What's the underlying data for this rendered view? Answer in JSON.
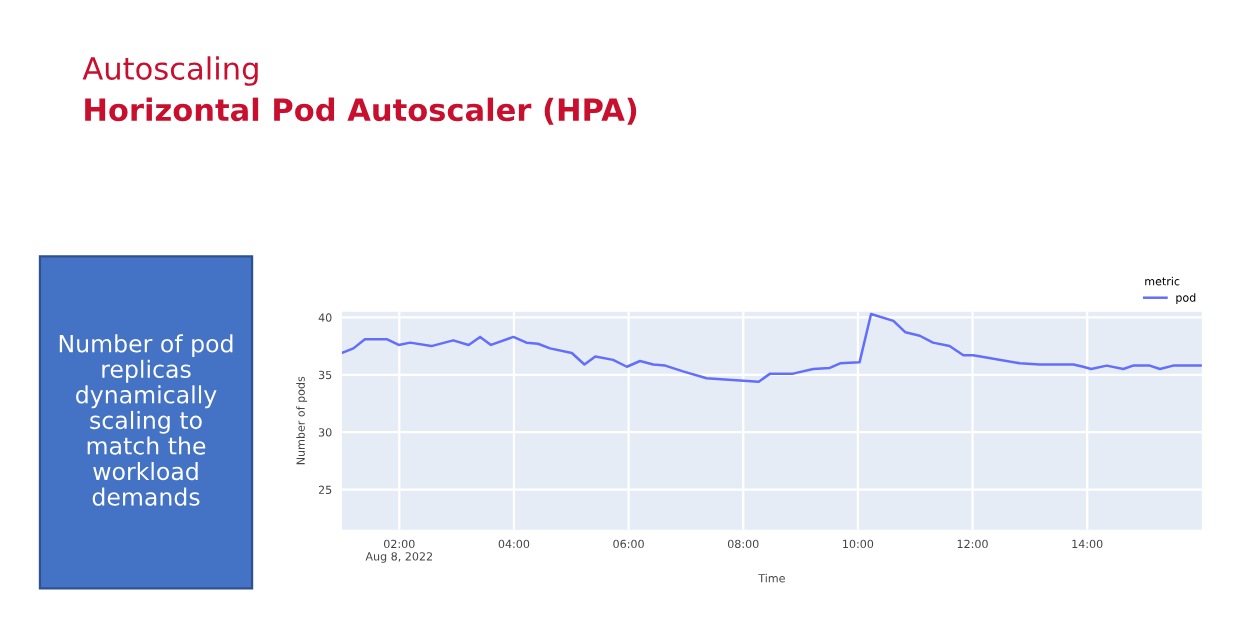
{
  "chart_data": {
    "type": "line",
    "title": "Autoscaling",
    "subtitle": "Horizontal Pod Autoscaler (HPA)",
    "xlabel": "Time",
    "ylabel": "Number of pods",
    "legend_title": "metric",
    "legend": "top right",
    "grid": true,
    "annotations": [
      "Number of pod\nreplicas\ndynamically\nscaling to\nmatch the\nworkload\ndemands"
    ],
    "xlim": [
      1.0,
      16.0
    ],
    "xticks": [
      {
        "value": 2,
        "label": "02:00\nAug 8, 2022"
      },
      {
        "value": 4,
        "label": "04:00"
      },
      {
        "value": 6,
        "label": "06:00"
      },
      {
        "value": 8,
        "label": "08:00"
      },
      {
        "value": 10,
        "label": "10:00"
      },
      {
        "value": 12,
        "label": "12:00"
      },
      {
        "value": 14,
        "label": "14:00"
      }
    ],
    "ylim": [
      21.5,
      40.5
    ],
    "yticks": [
      25,
      30,
      35,
      40
    ],
    "series": [
      {
        "name": "pod",
        "color": "#636efa",
        "x": [
          1.0,
          1.2,
          1.4,
          1.78,
          1.99,
          2.19,
          2.56,
          2.94,
          3.21,
          3.41,
          3.6,
          3.99,
          4.22,
          4.42,
          4.63,
          5.01,
          5.23,
          5.42,
          5.73,
          5.97,
          6.2,
          6.43,
          6.64,
          6.95,
          7.36,
          7.94,
          8.27,
          8.47,
          8.87,
          9.22,
          9.51,
          9.69,
          10.03,
          10.23,
          10.62,
          10.83,
          11.08,
          11.31,
          11.6,
          11.84,
          12.01,
          12.24,
          12.83,
          13.17,
          13.76,
          13.93,
          14.07,
          14.34,
          14.63,
          14.8,
          15.09,
          15.27,
          15.5,
          16.0
        ],
        "values": [
          36.9,
          37.3,
          38.1,
          38.1,
          37.6,
          37.8,
          37.5,
          38.0,
          37.6,
          38.3,
          37.6,
          38.3,
          37.8,
          37.7,
          37.3,
          36.9,
          35.9,
          36.6,
          36.3,
          35.7,
          36.2,
          35.9,
          35.8,
          35.3,
          34.7,
          34.5,
          34.4,
          35.1,
          35.1,
          35.5,
          35.6,
          36.0,
          36.1,
          40.3,
          39.7,
          38.7,
          38.4,
          37.8,
          37.5,
          36.7,
          36.7,
          36.5,
          36.0,
          35.9,
          35.9,
          35.7,
          35.5,
          35.8,
          35.5,
          35.8,
          35.8,
          35.5,
          35.8,
          35.8
        ]
      }
    ]
  }
}
